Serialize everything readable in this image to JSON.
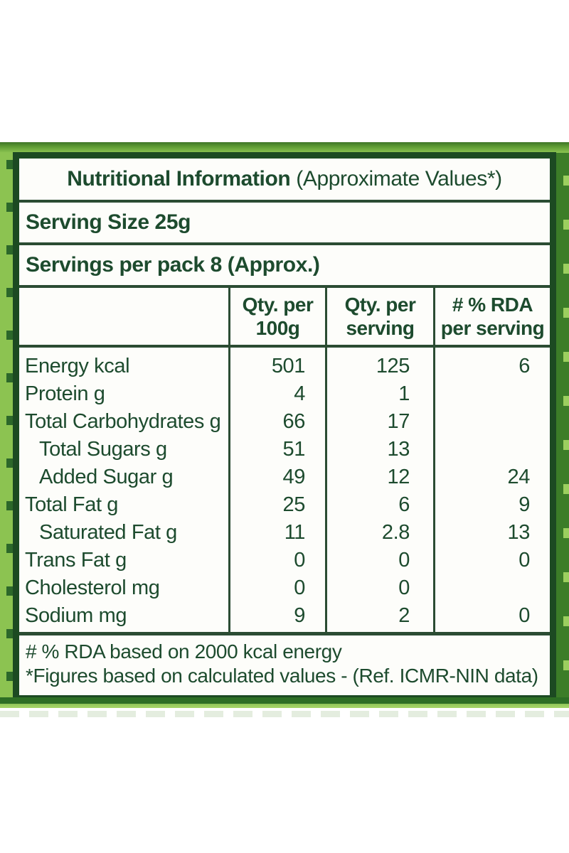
{
  "label": {
    "title_bold": "Nutritional Information",
    "title_rest": " (Approximate Values*)",
    "serving_size": "Serving Size 25g",
    "servings_per_pack": "Servings per pack 8 (Approx.)",
    "columns": [
      "Qty. per\n100g",
      "Qty. per\nserving",
      "# % RDA\nper serving"
    ],
    "rows": [
      {
        "name": "Energy kcal",
        "per_100g": "501",
        "per_serving": "125",
        "rda_per_serving": "6"
      },
      {
        "name": "Protein g",
        "per_100g": "4",
        "per_serving": "1",
        "rda_per_serving": ""
      },
      {
        "name": "Total Carbohydrates g",
        "per_100g": "66",
        "per_serving": "17",
        "rda_per_serving": ""
      },
      {
        "name": "Total Sugars g",
        "per_100g": "51",
        "per_serving": "13",
        "rda_per_serving": ""
      },
      {
        "name": "Added Sugar g",
        "per_100g": "49",
        "per_serving": "12",
        "rda_per_serving": "24"
      },
      {
        "name": "Total Fat g",
        "per_100g": "25",
        "per_serving": "6",
        "rda_per_serving": "9"
      },
      {
        "name": "Saturated Fat g",
        "per_100g": "11",
        "per_serving": "2.8",
        "rda_per_serving": "13"
      },
      {
        "name": "Trans Fat g",
        "per_100g": "0",
        "per_serving": "0",
        "rda_per_serving": "0"
      },
      {
        "name": "Cholesterol mg",
        "per_100g": "0",
        "per_serving": "0",
        "rda_per_serving": ""
      },
      {
        "name": "Sodium mg",
        "per_100g": "9",
        "per_serving": "2",
        "rda_per_serving": "0"
      }
    ],
    "footnotes": [
      "# % RDA based on 2000 kcal energy",
      "*Figures based on calculated values - (Ref. ICMR-NIN data)"
    ],
    "colors": {
      "text_green": "#1d4b2e",
      "rule_green": "#2b4c33",
      "border_green": "#1c4a22",
      "edge_light_green": "#8cc351",
      "edge_dark_green": "#3c7d28",
      "band_dark_green": "#2d6e24",
      "band_light_green": "#93c859"
    }
  }
}
